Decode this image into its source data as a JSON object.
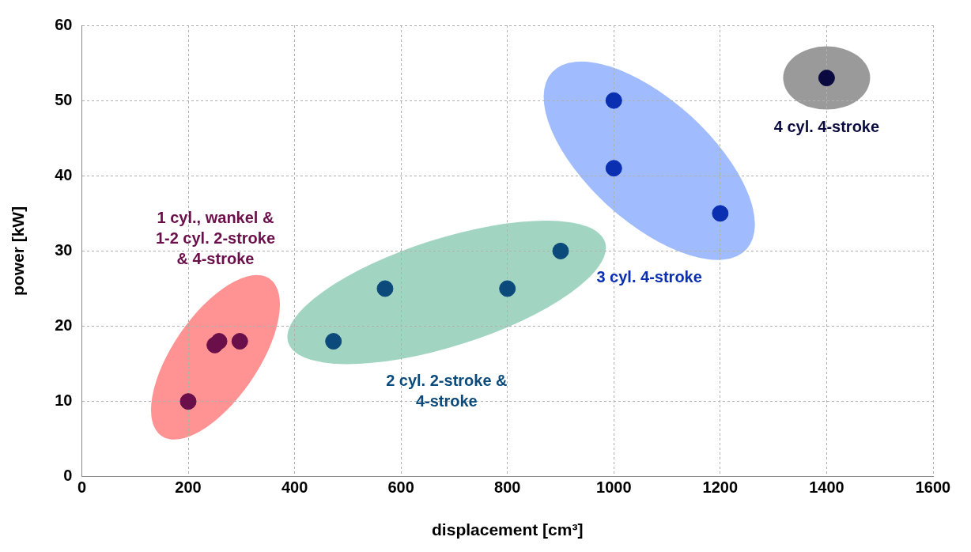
{
  "chart_data": {
    "type": "scatter",
    "xlabel": "displacement [cm³]",
    "ylabel": "power [kW]",
    "xlim": [
      0,
      1600
    ],
    "xticks": [
      0,
      200,
      400,
      600,
      800,
      1000,
      1200,
      1400,
      1600
    ],
    "ylim": [
      0,
      60
    ],
    "yticks": [
      0,
      10,
      20,
      30,
      40,
      50,
      60
    ],
    "grid": true,
    "legend": false,
    "marker": "circle",
    "series": [
      {
        "name": "1 cyl., wankel &\n1-2 cyl. 2-stroke\n& 4-stroke",
        "color": "#6b0f4a",
        "x": [
          200,
          250,
          258,
          297
        ],
        "values": [
          10,
          17.5,
          18,
          18
        ]
      },
      {
        "name": "2 cyl. 2-stroke &\n4-stroke",
        "color": "#0b4a7a",
        "x": [
          473,
          570,
          800,
          900
        ],
        "values": [
          18,
          25,
          25,
          30
        ]
      },
      {
        "name": "3 cyl. 4-stroke",
        "color": "#0a2fb0",
        "x": [
          1000,
          1000,
          1200
        ],
        "values": [
          50,
          41,
          35
        ]
      },
      {
        "name": "4 cyl. 4-stroke",
        "color": "#0a0a40",
        "x": [
          1400
        ],
        "values": [
          53
        ]
      }
    ]
  }
}
